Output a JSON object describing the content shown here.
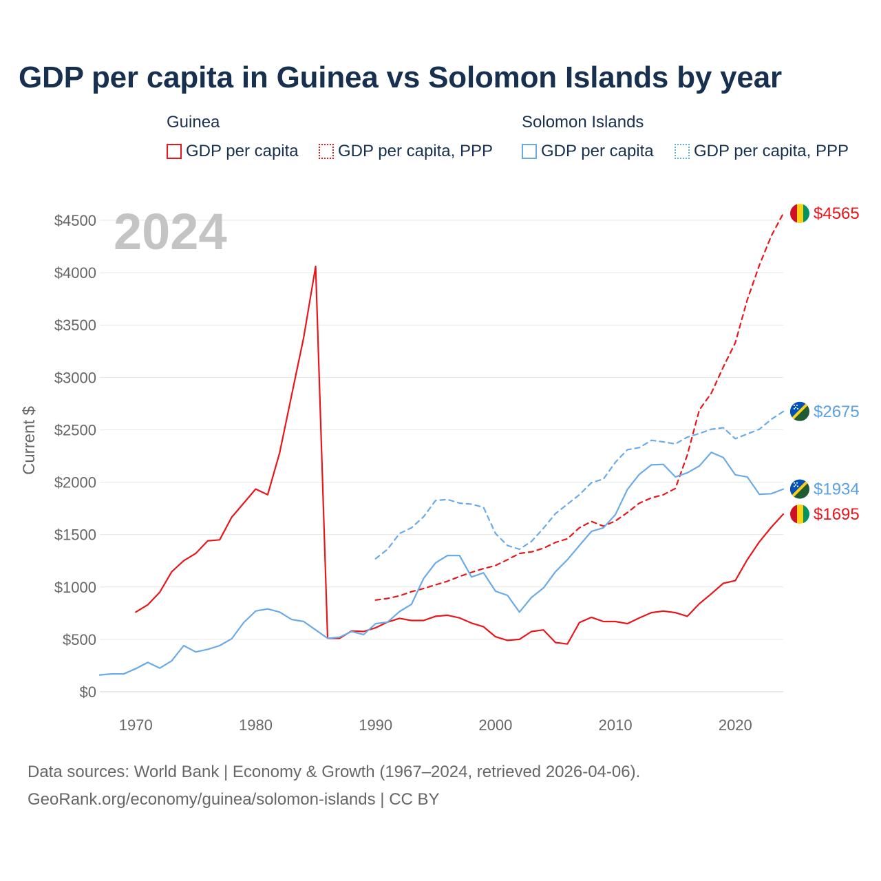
{
  "title": "GDP per capita in Guinea vs Solomon Islands by year",
  "legend": {
    "groups": [
      {
        "country": "Guinea",
        "color": "#e8151b",
        "items": [
          {
            "label": "GDP per capita",
            "style": "solid"
          },
          {
            "label": "GDP per capita, PPP",
            "style": "dotted"
          }
        ]
      },
      {
        "country": "Solomon Islands",
        "color": "#6aaae8",
        "items": [
          {
            "label": "GDP per capita",
            "style": "solid"
          },
          {
            "label": "GDP per capita, PPP",
            "style": "dotted"
          }
        ]
      }
    ]
  },
  "year_label": "2024",
  "footer": {
    "line1": "Data sources: World Bank | Economy & Growth (1967–2024, retrieved 2026-04-06).",
    "line2": "GeoRank.org/economy/guinea/solomon-islands | CC BY"
  },
  "chart_data": {
    "type": "line",
    "title": "GDP per capita in Guinea vs Solomon Islands by year",
    "xlabel": "",
    "ylabel": "Current $",
    "xlim": [
      1967,
      2024
    ],
    "ylim": [
      0,
      4700
    ],
    "x_ticks": [
      1970,
      1980,
      1990,
      2000,
      2010,
      2020
    ],
    "y_ticks": [
      0,
      500,
      1000,
      1500,
      2000,
      2500,
      3000,
      3500,
      4000,
      4500
    ],
    "y_tick_labels": [
      "$0",
      "$500",
      "$1000",
      "$1500",
      "$2000",
      "$2500",
      "$3000",
      "$3500",
      "$4000",
      "$4500"
    ],
    "grid": true,
    "series": [
      {
        "name": "Guinea GDP per capita",
        "country": "Guinea",
        "color": "#e8151b",
        "dash": "solid",
        "end_label": "$1695",
        "points": [
          [
            1970,
            760
          ],
          [
            1971,
            830
          ],
          [
            1972,
            950
          ],
          [
            1973,
            1145
          ],
          [
            1974,
            1250
          ],
          [
            1975,
            1320
          ],
          [
            1976,
            1440
          ],
          [
            1977,
            1450
          ],
          [
            1978,
            1665
          ],
          [
            1979,
            1800
          ],
          [
            1980,
            1935
          ],
          [
            1981,
            1880
          ],
          [
            1982,
            2280
          ],
          [
            1983,
            2830
          ],
          [
            1984,
            3380
          ],
          [
            1985,
            4060
          ],
          [
            1986,
            510
          ],
          [
            1987,
            510
          ],
          [
            1988,
            580
          ],
          [
            1989,
            575
          ],
          [
            1990,
            610
          ],
          [
            1991,
            665
          ],
          [
            1992,
            700
          ],
          [
            1993,
            680
          ],
          [
            1994,
            680
          ],
          [
            1995,
            720
          ],
          [
            1996,
            730
          ],
          [
            1997,
            705
          ],
          [
            1998,
            655
          ],
          [
            1999,
            620
          ],
          [
            2000,
            525
          ],
          [
            2001,
            490
          ],
          [
            2002,
            500
          ],
          [
            2003,
            575
          ],
          [
            2004,
            590
          ],
          [
            2005,
            470
          ],
          [
            2006,
            455
          ],
          [
            2007,
            660
          ],
          [
            2008,
            710
          ],
          [
            2009,
            670
          ],
          [
            2010,
            670
          ],
          [
            2011,
            650
          ],
          [
            2012,
            705
          ],
          [
            2013,
            755
          ],
          [
            2014,
            770
          ],
          [
            2015,
            755
          ],
          [
            2016,
            720
          ],
          [
            2017,
            840
          ],
          [
            2018,
            935
          ],
          [
            2019,
            1035
          ],
          [
            2020,
            1060
          ],
          [
            2021,
            1260
          ],
          [
            2022,
            1430
          ],
          [
            2023,
            1570
          ],
          [
            2024,
            1695
          ]
        ]
      },
      {
        "name": "Guinea GDP per capita, PPP",
        "country": "Guinea",
        "color": "#e8151b",
        "dash": "dashed",
        "end_label": "$4565",
        "points": [
          [
            1990,
            875
          ],
          [
            1991,
            890
          ],
          [
            1992,
            915
          ],
          [
            1993,
            955
          ],
          [
            1994,
            985
          ],
          [
            1995,
            1020
          ],
          [
            1996,
            1055
          ],
          [
            1997,
            1100
          ],
          [
            1998,
            1140
          ],
          [
            1999,
            1175
          ],
          [
            2000,
            1205
          ],
          [
            2001,
            1260
          ],
          [
            2002,
            1320
          ],
          [
            2003,
            1335
          ],
          [
            2004,
            1370
          ],
          [
            2005,
            1425
          ],
          [
            2006,
            1460
          ],
          [
            2007,
            1565
          ],
          [
            2008,
            1625
          ],
          [
            2009,
            1580
          ],
          [
            2010,
            1630
          ],
          [
            2011,
            1710
          ],
          [
            2012,
            1800
          ],
          [
            2013,
            1850
          ],
          [
            2014,
            1880
          ],
          [
            2015,
            1940
          ],
          [
            2016,
            2260
          ],
          [
            2017,
            2690
          ],
          [
            2018,
            2850
          ],
          [
            2019,
            3100
          ],
          [
            2020,
            3330
          ],
          [
            2021,
            3740
          ],
          [
            2022,
            4070
          ],
          [
            2023,
            4350
          ],
          [
            2024,
            4565
          ]
        ]
      },
      {
        "name": "Solomon Islands GDP per capita",
        "country": "Solomon Islands",
        "color": "#6aaae8",
        "dash": "solid",
        "end_label": "$1934",
        "points": [
          [
            1967,
            160
          ],
          [
            1968,
            170
          ],
          [
            1969,
            170
          ],
          [
            1970,
            220
          ],
          [
            1971,
            280
          ],
          [
            1972,
            225
          ],
          [
            1973,
            295
          ],
          [
            1974,
            440
          ],
          [
            1975,
            380
          ],
          [
            1976,
            405
          ],
          [
            1977,
            440
          ],
          [
            1978,
            505
          ],
          [
            1979,
            660
          ],
          [
            1980,
            770
          ],
          [
            1981,
            790
          ],
          [
            1982,
            760
          ],
          [
            1983,
            690
          ],
          [
            1984,
            670
          ],
          [
            1985,
            590
          ],
          [
            1986,
            510
          ],
          [
            1987,
            520
          ],
          [
            1988,
            575
          ],
          [
            1989,
            545
          ],
          [
            1990,
            650
          ],
          [
            1991,
            665
          ],
          [
            1992,
            765
          ],
          [
            1993,
            835
          ],
          [
            1994,
            1080
          ],
          [
            1995,
            1230
          ],
          [
            1996,
            1300
          ],
          [
            1997,
            1300
          ],
          [
            1998,
            1095
          ],
          [
            1999,
            1135
          ],
          [
            2000,
            960
          ],
          [
            2001,
            920
          ],
          [
            2002,
            760
          ],
          [
            2003,
            900
          ],
          [
            2004,
            990
          ],
          [
            2005,
            1145
          ],
          [
            2006,
            1260
          ],
          [
            2007,
            1395
          ],
          [
            2008,
            1530
          ],
          [
            2009,
            1565
          ],
          [
            2010,
            1690
          ],
          [
            2011,
            1930
          ],
          [
            2012,
            2075
          ],
          [
            2013,
            2165
          ],
          [
            2014,
            2170
          ],
          [
            2015,
            2050
          ],
          [
            2016,
            2090
          ],
          [
            2017,
            2155
          ],
          [
            2018,
            2285
          ],
          [
            2019,
            2235
          ],
          [
            2020,
            2070
          ],
          [
            2021,
            2050
          ],
          [
            2022,
            1885
          ],
          [
            2023,
            1890
          ],
          [
            2024,
            1934
          ]
        ]
      },
      {
        "name": "Solomon Islands GDP per capita, PPP",
        "country": "Solomon Islands",
        "color": "#6aaae8",
        "dash": "dashed",
        "end_label": "$2675",
        "points": [
          [
            1990,
            1270
          ],
          [
            1991,
            1360
          ],
          [
            1992,
            1510
          ],
          [
            1993,
            1565
          ],
          [
            1994,
            1670
          ],
          [
            1995,
            1825
          ],
          [
            1996,
            1835
          ],
          [
            1997,
            1800
          ],
          [
            1998,
            1790
          ],
          [
            1999,
            1760
          ],
          [
            2000,
            1510
          ],
          [
            2001,
            1395
          ],
          [
            2002,
            1360
          ],
          [
            2003,
            1435
          ],
          [
            2004,
            1560
          ],
          [
            2005,
            1700
          ],
          [
            2006,
            1790
          ],
          [
            2007,
            1880
          ],
          [
            2008,
            1995
          ],
          [
            2009,
            2030
          ],
          [
            2010,
            2190
          ],
          [
            2011,
            2310
          ],
          [
            2012,
            2330
          ],
          [
            2013,
            2400
          ],
          [
            2014,
            2385
          ],
          [
            2015,
            2365
          ],
          [
            2016,
            2430
          ],
          [
            2017,
            2465
          ],
          [
            2018,
            2505
          ],
          [
            2019,
            2520
          ],
          [
            2020,
            2415
          ],
          [
            2021,
            2460
          ],
          [
            2022,
            2505
          ],
          [
            2023,
            2600
          ],
          [
            2024,
            2675
          ]
        ]
      },
      {
        "name": "Solomon Islands GDP per capita (gap connector)",
        "country": "Solomon Islands",
        "color": "#6aaae8",
        "dash": "dashed",
        "end_label": "",
        "points": [
          [
            1969,
            170
          ],
          [
            1970,
            220
          ],
          [
            1971,
            280
          ]
        ]
      }
    ]
  }
}
